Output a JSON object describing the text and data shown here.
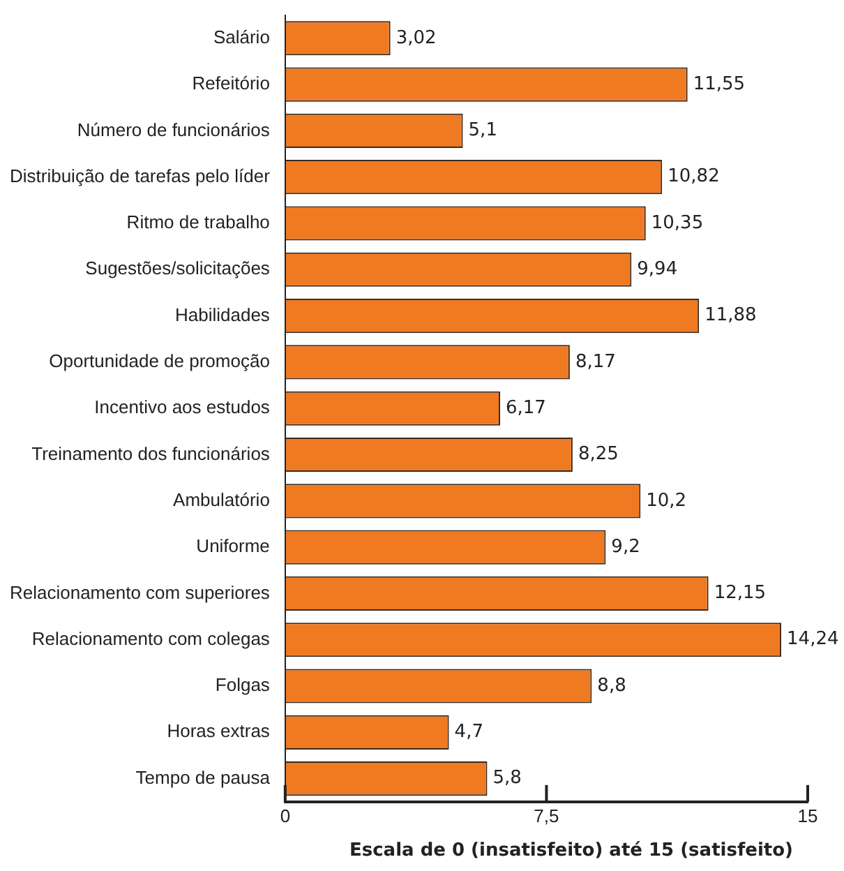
{
  "chart_data": {
    "type": "bar",
    "orientation": "horizontal",
    "xlabel": "Escala de 0 (insatisfeito) até 15 (satisfeito)",
    "categories": [
      "Salário",
      "Refeitório",
      "Número de funcionários",
      "Distribuição de tarefas pelo líder",
      "Ritmo de trabalho",
      "Sugestões/solicitações",
      "Habilidades",
      "Oportunidade de promoção",
      "Incentivo aos estudos",
      "Treinamento dos funcionários",
      "Ambulatório",
      "Uniforme",
      "Relacionamento com superiores",
      "Relacionamento com colegas",
      "Folgas",
      "Horas extras",
      "Tempo de pausa"
    ],
    "values": [
      3.02,
      11.55,
      5.1,
      10.82,
      10.35,
      9.94,
      11.88,
      8.17,
      6.17,
      8.25,
      10.2,
      9.2,
      12.15,
      14.24,
      8.8,
      4.7,
      5.8
    ],
    "value_labels": [
      "3,02",
      "11,55",
      "5,1",
      "10,82",
      "10,35",
      "9,94",
      "11,88",
      "8,17",
      "6,17",
      "8,25",
      "10,2",
      "9,2",
      "12,15",
      "14,24",
      "8,8",
      "4,7",
      "5,8"
    ],
    "color": "#f07a22",
    "xlim": [
      0,
      15
    ],
    "xticks": [
      0,
      {
        "value": 7.5,
        "label": "7,5"
      },
      15
    ],
    "grid": false,
    "legend": false
  }
}
